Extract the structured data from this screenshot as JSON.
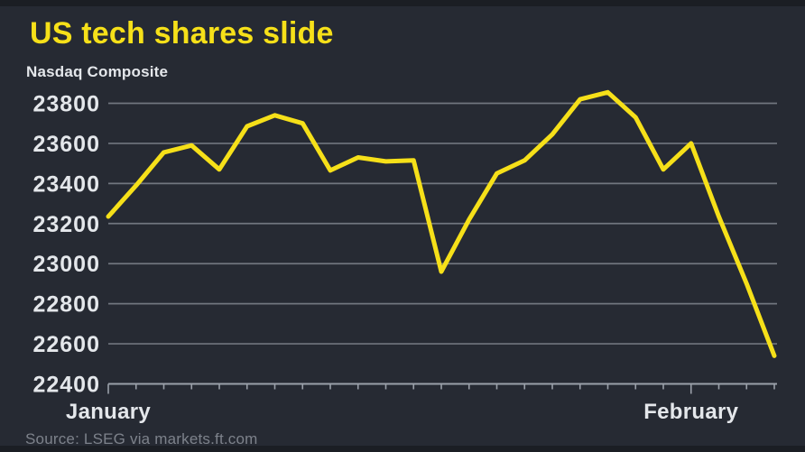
{
  "header": {
    "title": "US tech shares slide",
    "subtitle": "Nasdaq Composite"
  },
  "source": {
    "text": "Source: LSEG via markets.ft.com"
  },
  "colors": {
    "background": "#262a33",
    "accent_yellow": "#f6e019",
    "label_text": "#e4e7eb",
    "grid_line": "#71767f",
    "axis_and_ticks": "#9aa0a9",
    "source_text": "#7d828b"
  },
  "chart_data": {
    "type": "line",
    "title": "US tech shares slide",
    "subtitle": "Nasdaq Composite",
    "x": [
      0,
      1,
      2,
      3,
      4,
      5,
      6,
      7,
      8,
      9,
      10,
      11,
      12,
      13,
      14,
      15,
      16,
      17,
      18,
      19,
      20,
      21,
      22,
      23,
      24
    ],
    "series": [
      {
        "name": "Nasdaq Composite",
        "values": [
          23235,
          23390,
          23555,
          23590,
          23470,
          23685,
          23740,
          23700,
          23465,
          23530,
          23510,
          23515,
          22960,
          23220,
          23450,
          23515,
          23645,
          23820,
          23855,
          23730,
          23470,
          23600,
          23235,
          22900,
          22540
        ]
      }
    ],
    "x_major_ticks": [
      {
        "index": 0,
        "label": "January"
      },
      {
        "index": 21,
        "label": "February"
      }
    ],
    "yticks": [
      23800,
      23600,
      23400,
      23200,
      23000,
      22800,
      22600,
      22400
    ],
    "ylim": [
      22400,
      23800
    ],
    "xlabel": "",
    "ylabel": "",
    "grid": "horizontal",
    "legend": "none",
    "line_color": "#f6e019"
  }
}
